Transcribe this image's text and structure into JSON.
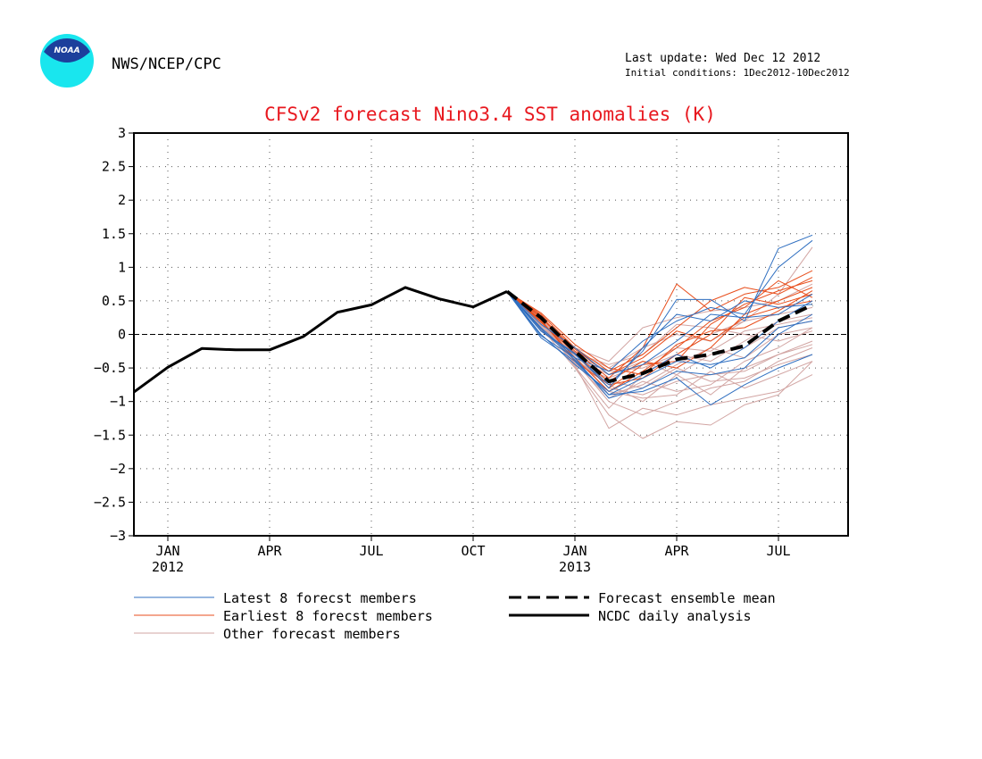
{
  "header": {
    "logo_text": "NOAA",
    "agency": "NWS/NCEP/CPC",
    "last_update": "Last update: Wed Dec 12 2012",
    "initial_conditions": "Initial conditions: 1Dec2012-10Dec2012"
  },
  "colors": {
    "title": "#e8181f",
    "latest": "#2f6fc0",
    "earliest": "#e84e1c",
    "other": "#d2a5a3",
    "analysis": "#000000",
    "logo_outer": "#19e6ee",
    "logo_inner": "#1c3f9c"
  },
  "chart_data": {
    "type": "line",
    "title": "CFSv2 forecast Nino3.4 SST anomalies (K)",
    "xlabel": "",
    "ylabel": "",
    "x_unit": "month",
    "xlim": [
      "2011-12",
      "2013-08"
    ],
    "ylim": [
      -3,
      3
    ],
    "yticks": [
      -3,
      -2.5,
      -2,
      -1.5,
      -1,
      -0.5,
      0,
      0.5,
      1,
      1.5,
      2,
      2.5,
      3
    ],
    "ytick_labels": [
      "−3",
      "−2.5",
      "−2",
      "−1.5",
      "−1",
      "−0.5",
      "0",
      "0.5",
      "1",
      "1.5",
      "2",
      "2.5",
      "3"
    ],
    "xticks": [
      {
        "x": "2012-01",
        "label": "JAN",
        "year": "2012"
      },
      {
        "x": "2012-04",
        "label": "APR",
        "year": ""
      },
      {
        "x": "2012-07",
        "label": "JUL",
        "year": ""
      },
      {
        "x": "2012-10",
        "label": "OCT",
        "year": ""
      },
      {
        "x": "2013-01",
        "label": "JAN",
        "year": "2013"
      },
      {
        "x": "2013-04",
        "label": "APR",
        "year": ""
      },
      {
        "x": "2013-07",
        "label": "JUL",
        "year": ""
      }
    ],
    "grid": true,
    "legend_position": "bottom",
    "legend": [
      {
        "label": "Latest 8 forecst members",
        "style": "latest"
      },
      {
        "label": "Earliest 8 forecst members",
        "style": "earliest"
      },
      {
        "label": "Other forecast members",
        "style": "other"
      },
      {
        "label": "Forecast ensemble mean",
        "style": "mean"
      },
      {
        "label": "NCDC daily analysis",
        "style": "analysis"
      }
    ],
    "analysis": {
      "name": "NCDC daily analysis",
      "x": [
        "2011-12",
        "2012-01",
        "2012-02",
        "2012-03",
        "2012-04",
        "2012-05",
        "2012-06",
        "2012-07",
        "2012-08",
        "2012-09",
        "2012-10",
        "2012-11"
      ],
      "values": [
        -0.86,
        -0.49,
        -0.21,
        -0.23,
        -0.23,
        -0.03,
        0.33,
        0.44,
        0.7,
        0.53,
        0.41,
        0.64
      ]
    },
    "ensemble_mean": {
      "name": "Forecast ensemble mean",
      "x": [
        "2012-11",
        "2012-12",
        "2013-01",
        "2013-02",
        "2013-03",
        "2013-04",
        "2013-05",
        "2013-06",
        "2013-07",
        "2013-08"
      ],
      "values": [
        0.64,
        0.25,
        -0.25,
        -0.7,
        -0.58,
        -0.37,
        -0.3,
        -0.17,
        0.2,
        0.44
      ]
    },
    "members_x": [
      "2012-11",
      "2012-12",
      "2013-01",
      "2013-02",
      "2013-03",
      "2013-04",
      "2013-05",
      "2013-06",
      "2013-07",
      "2013-08"
    ],
    "latest_members": [
      [
        0.64,
        -0.05,
        -0.4,
        -0.9,
        -0.85,
        -0.65,
        -1.05,
        -0.75,
        -0.5,
        -0.3
      ],
      [
        0.64,
        0.05,
        -0.3,
        -0.75,
        -0.25,
        0.52,
        0.52,
        0.2,
        1.28,
        1.48
      ],
      [
        0.64,
        0.1,
        -0.35,
        -0.55,
        -0.1,
        0.2,
        0.4,
        0.3,
        1.0,
        1.4
      ],
      [
        0.64,
        0.0,
        -0.45,
        -0.85,
        -0.6,
        -0.3,
        -0.5,
        -0.2,
        0.2,
        0.5
      ],
      [
        0.64,
        0.15,
        -0.2,
        -0.6,
        -0.45,
        -0.1,
        0.3,
        0.25,
        0.3,
        0.6
      ],
      [
        0.64,
        -0.02,
        -0.35,
        -0.95,
        -0.8,
        -0.55,
        -0.6,
        -0.5,
        0.0,
        0.3
      ],
      [
        0.64,
        0.05,
        -0.28,
        -0.8,
        -0.2,
        0.3,
        0.2,
        0.5,
        0.4,
        0.45
      ],
      [
        0.64,
        0.08,
        -0.38,
        -0.9,
        -0.65,
        -0.4,
        -0.45,
        -0.35,
        0.1,
        0.2
      ]
    ],
    "earliest_members": [
      [
        0.64,
        0.25,
        -0.25,
        -0.65,
        -0.2,
        0.75,
        0.35,
        0.6,
        0.7,
        0.95
      ],
      [
        0.64,
        0.3,
        -0.2,
        -0.55,
        -0.3,
        0.1,
        0.5,
        0.7,
        0.6,
        0.85
      ],
      [
        0.64,
        0.2,
        -0.35,
        -0.85,
        -0.55,
        -0.2,
        0.2,
        0.4,
        0.8,
        0.55
      ],
      [
        0.64,
        0.28,
        -0.3,
        -0.7,
        -0.4,
        -0.5,
        -0.2,
        0.3,
        0.5,
        0.7
      ],
      [
        0.64,
        0.22,
        -0.4,
        -0.75,
        -0.65,
        -0.3,
        0.0,
        0.55,
        0.45,
        0.6
      ],
      [
        0.64,
        0.32,
        -0.15,
        -0.5,
        -0.6,
        -0.15,
        0.05,
        0.1,
        0.35,
        0.65
      ],
      [
        0.64,
        0.18,
        -0.28,
        -0.8,
        -0.45,
        -0.4,
        0.15,
        0.45,
        0.65,
        0.8
      ],
      [
        0.64,
        0.26,
        -0.22,
        -0.6,
        -0.35,
        0.05,
        -0.1,
        0.25,
        0.4,
        0.5
      ]
    ],
    "other_members": [
      [
        0.64,
        0.15,
        -0.45,
        -1.4,
        -1.1,
        -1.2,
        -1.05,
        -0.95,
        -0.85,
        -0.6
      ],
      [
        0.64,
        0.1,
        -0.5,
        -1.2,
        -1.55,
        -1.3,
        -1.35,
        -1.05,
        -0.9,
        -0.4
      ],
      [
        0.64,
        0.2,
        -0.4,
        -1.0,
        -1.2,
        -1.0,
        -0.8,
        -0.7,
        -0.4,
        -0.2
      ],
      [
        0.64,
        0.25,
        -0.3,
        -0.8,
        -0.9,
        -0.7,
        -0.6,
        -0.55,
        -0.3,
        -0.1
      ],
      [
        0.64,
        0.05,
        -0.35,
        -0.6,
        -0.4,
        -0.6,
        -0.3,
        -0.2,
        0.1,
        0.2
      ],
      [
        0.64,
        0.18,
        -0.25,
        -0.5,
        -0.2,
        0.0,
        -0.1,
        0.2,
        0.3,
        0.4
      ],
      [
        0.64,
        0.12,
        -0.42,
        -0.95,
        -0.7,
        -0.85,
        -0.75,
        -0.4,
        -0.2,
        0.1
      ],
      [
        0.64,
        0.22,
        -0.2,
        -0.4,
        0.1,
        0.25,
        0.35,
        0.4,
        0.5,
        0.75
      ],
      [
        0.64,
        0.08,
        -0.38,
        -0.7,
        -0.8,
        -0.5,
        -0.7,
        -0.65,
        -0.45,
        -0.3
      ],
      [
        0.64,
        0.28,
        -0.3,
        -0.55,
        -0.5,
        -0.3,
        0.0,
        0.2,
        0.6,
        1.3
      ],
      [
        0.64,
        0.14,
        -0.33,
        -0.85,
        -0.95,
        -0.9,
        -0.55,
        -0.8,
        -0.6,
        -0.4
      ],
      [
        0.64,
        0.2,
        -0.48,
        -1.1,
        -0.6,
        -0.3,
        -0.4,
        -0.1,
        0.2,
        0.3
      ],
      [
        0.64,
        0.1,
        -0.28,
        -0.45,
        -0.3,
        0.15,
        0.1,
        0.0,
        -0.1,
        0.05
      ],
      [
        0.64,
        0.24,
        -0.36,
        -0.75,
        -1.0,
        -0.6,
        -0.9,
        -0.5,
        -0.3,
        -0.15
      ],
      [
        0.64,
        0.16,
        -0.44,
        -0.65,
        -0.45,
        -0.2,
        -0.25,
        0.05,
        0.15,
        0.25
      ],
      [
        0.64,
        0.06,
        -0.26,
        -0.9,
        -0.75,
        -0.45,
        -0.2,
        -0.35,
        0.0,
        0.1
      ]
    ]
  }
}
